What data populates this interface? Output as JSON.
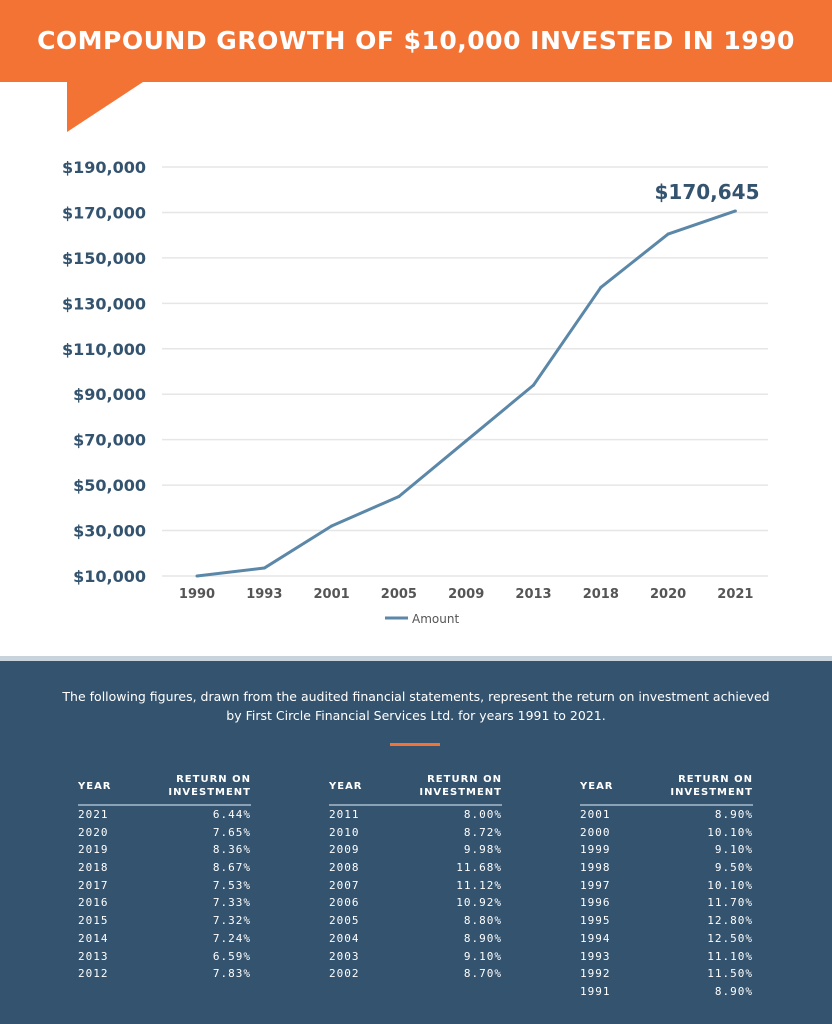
{
  "header": {
    "title": "COMPOUND GROWTH OF $10,000 INVESTED IN 1990"
  },
  "colors": {
    "accent": "#F37335",
    "panel": "#34536E",
    "line": "#5B87A8"
  },
  "chart_data": {
    "type": "line",
    "categories": [
      "1990",
      "1993",
      "2001",
      "2005",
      "2009",
      "2013",
      "2018",
      "2020",
      "2021"
    ],
    "series": [
      {
        "name": "Amount",
        "values": [
          10000,
          13500,
          32000,
          45000,
          69500,
          94000,
          137000,
          160500,
          170645
        ]
      }
    ],
    "yticks": [
      "$10,000",
      "$30,000",
      "$50,000",
      "$70,000",
      "$90,000",
      "$110,000",
      "$130,000",
      "$150,000",
      "$170,000",
      "$190,000"
    ],
    "ylim": [
      10000,
      190000
    ],
    "annotation": "$170,645",
    "grid": true,
    "legend": "bottom"
  },
  "intro": "The following figures, drawn from the audited financial statements, represent the return on investment achieved by First Circle Financial Services Ltd. for years 1991 to 2021.",
  "table": {
    "col_year": "YEAR",
    "col_roi_1": "RETURN ON",
    "col_roi_2": "INVESTMENT",
    "columns": [
      [
        [
          "2021",
          "6.44%"
        ],
        [
          "2020",
          "7.65%"
        ],
        [
          "2019",
          "8.36%"
        ],
        [
          "2018",
          "8.67%"
        ],
        [
          "2017",
          "7.53%"
        ],
        [
          "2016",
          "7.33%"
        ],
        [
          "2015",
          "7.32%"
        ],
        [
          "2014",
          "7.24%"
        ],
        [
          "2013",
          "6.59%"
        ],
        [
          "2012",
          "7.83%"
        ]
      ],
      [
        [
          "2011",
          "8.00%"
        ],
        [
          "2010",
          "8.72%"
        ],
        [
          "2009",
          "9.98%"
        ],
        [
          "2008",
          "11.68%"
        ],
        [
          "2007",
          "11.12%"
        ],
        [
          "2006",
          "10.92%"
        ],
        [
          "2005",
          "8.80%"
        ],
        [
          "2004",
          "8.90%"
        ],
        [
          "2003",
          "9.10%"
        ],
        [
          "2002",
          "8.70%"
        ]
      ],
      [
        [
          "2001",
          "8.90%"
        ],
        [
          "2000",
          "10.10%"
        ],
        [
          "1999",
          "9.10%"
        ],
        [
          "1998",
          "9.50%"
        ],
        [
          "1997",
          "10.10%"
        ],
        [
          "1996",
          "11.70%"
        ],
        [
          "1995",
          "12.80%"
        ],
        [
          "1994",
          "12.50%"
        ],
        [
          "1993",
          "11.10%"
        ],
        [
          "1992",
          "11.50%"
        ],
        [
          "1991",
          "8.90%"
        ]
      ]
    ]
  }
}
